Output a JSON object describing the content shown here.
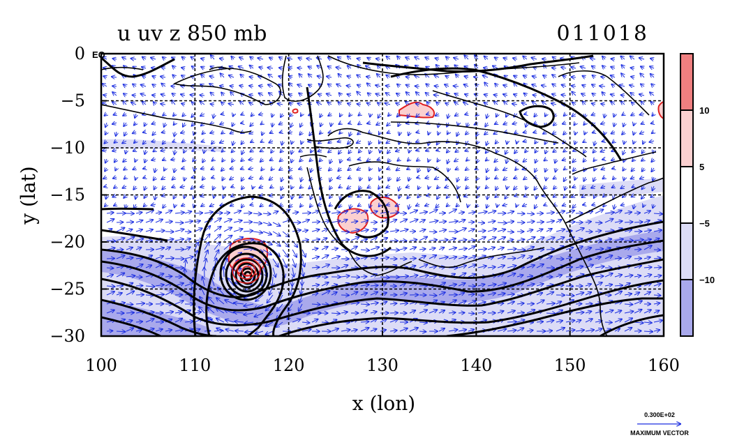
{
  "chart_data": {
    "type": "heatmap",
    "title_left": "u uv z 850 mb",
    "title_right": "011018",
    "xlabel": "x (lon)",
    "ylabel": "y (lat)",
    "xlim": [
      100,
      160
    ],
    "ylim": [
      -30,
      0
    ],
    "x_ticks": [
      100,
      110,
      120,
      130,
      140,
      150,
      160
    ],
    "y_ticks": [
      0,
      -5,
      -10,
      -15,
      -20,
      -25,
      -30
    ],
    "y_tick_labels": [
      "0",
      "−5",
      "−10",
      "−15",
      "−20",
      "−25",
      "−30"
    ],
    "x_tick_labels": [
      "100",
      "110",
      "120",
      "130",
      "140",
      "150",
      "160"
    ],
    "corner_label": "EQ",
    "grid": true,
    "colorbar": {
      "ticks": [
        "10",
        "5",
        "−5",
        "−10"
      ],
      "bands": [
        {
          "range": "> 10",
          "color": "#ef7f80"
        },
        {
          "range": "5 to 10",
          "color": "#fbd0d0"
        },
        {
          "range": "-5 to 5",
          "color": "#ffffff"
        },
        {
          "range": "-10 to -5",
          "color": "#dcdcf6"
        },
        {
          "range": "< -10",
          "color": "#a9a9ec"
        }
      ]
    },
    "vector_legend": {
      "value_label": "0.300E+02",
      "label": "MAXIMUM VECTOR"
    },
    "fields": {
      "shaded": "u wind (m/s)",
      "vectors": "uv wind",
      "contours": "z geopotential height"
    }
  }
}
